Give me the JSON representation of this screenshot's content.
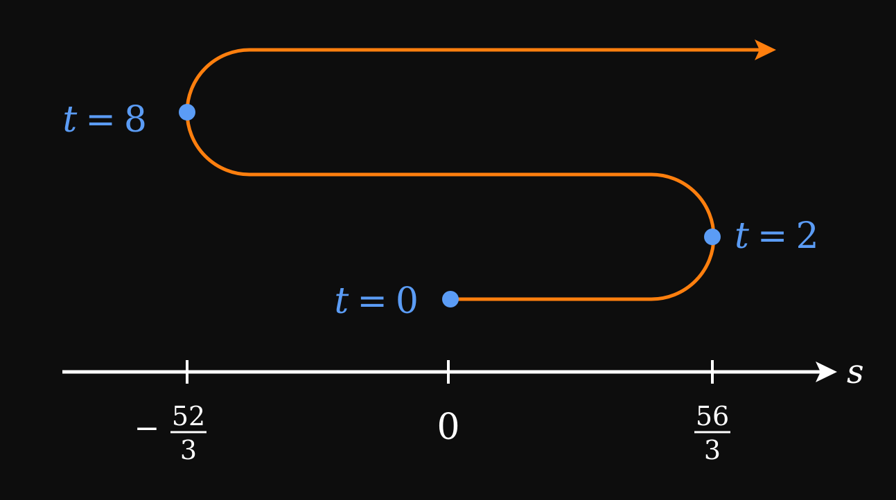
{
  "colors": {
    "background": "#0d0d0d",
    "path": "#ff7f0e",
    "points": "#5b9cf5",
    "axis": "#ffffff"
  },
  "axis": {
    "variable": "s",
    "ticks": [
      {
        "sign": "−",
        "numerator": "52",
        "denominator": "3",
        "whole": ""
      },
      {
        "sign": "",
        "numerator": "",
        "denominator": "",
        "whole": "0"
      },
      {
        "sign": "",
        "numerator": "56",
        "denominator": "3",
        "whole": ""
      }
    ]
  },
  "points": [
    {
      "var": "t",
      "eq": "=",
      "value": "0"
    },
    {
      "var": "t",
      "eq": "=",
      "value": "2"
    },
    {
      "var": "t",
      "eq": "=",
      "value": "8"
    }
  ]
}
